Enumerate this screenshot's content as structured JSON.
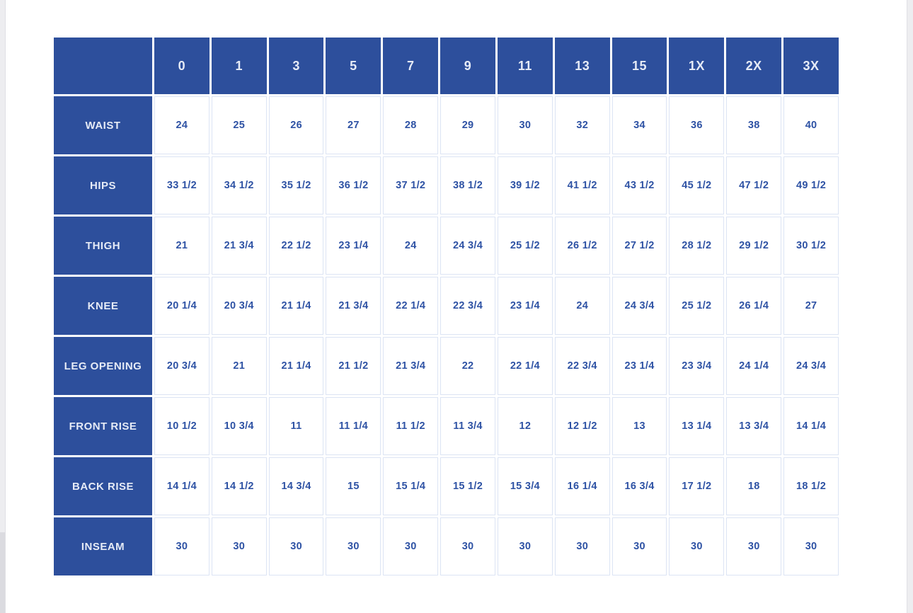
{
  "colors": {
    "header_bg": "#2d4f9c",
    "header_text": "#e6ebf6",
    "cell_text": "#2e52a4",
    "cell_border": "#dce4f4"
  },
  "chart_data": {
    "type": "table",
    "title": "",
    "corner_label": "",
    "columns": [
      "0",
      "1",
      "3",
      "5",
      "7",
      "9",
      "11",
      "13",
      "15",
      "1X",
      "2X",
      "3X"
    ],
    "rows": [
      {
        "label": "WAIST",
        "values": [
          "24",
          "25",
          "26",
          "27",
          "28",
          "29",
          "30",
          "32",
          "34",
          "36",
          "38",
          "40"
        ]
      },
      {
        "label": "HIPS",
        "values": [
          "33 1/2",
          "34 1/2",
          "35 1/2",
          "36 1/2",
          "37 1/2",
          "38 1/2",
          "39 1/2",
          "41 1/2",
          "43 1/2",
          "45 1/2",
          "47 1/2",
          "49 1/2"
        ]
      },
      {
        "label": "THIGH",
        "values": [
          "21",
          "21 3/4",
          "22 1/2",
          "23 1/4",
          "24",
          "24 3/4",
          "25 1/2",
          "26 1/2",
          "27 1/2",
          "28 1/2",
          "29 1/2",
          "30 1/2"
        ]
      },
      {
        "label": "KNEE",
        "values": [
          "20 1/4",
          "20 3/4",
          "21 1/4",
          "21 3/4",
          "22 1/4",
          "22 3/4",
          "23 1/4",
          "24",
          "24 3/4",
          "25 1/2",
          "26 1/4",
          "27"
        ]
      },
      {
        "label": "LEG OPENING",
        "values": [
          "20 3/4",
          "21",
          "21 1/4",
          "21 1/2",
          "21 3/4",
          "22",
          "22 1/4",
          "22 3/4",
          "23 1/4",
          "23 3/4",
          "24 1/4",
          "24 3/4"
        ]
      },
      {
        "label": "FRONT RISE",
        "values": [
          "10 1/2",
          "10 3/4",
          "11",
          "11 1/4",
          "11 1/2",
          "11 3/4",
          "12",
          "12 1/2",
          "13",
          "13 1/4",
          "13 3/4",
          "14 1/4"
        ]
      },
      {
        "label": "BACK RISE",
        "values": [
          "14 1/4",
          "14 1/2",
          "14 3/4",
          "15",
          "15 1/4",
          "15 1/2",
          "15 3/4",
          "16 1/4",
          "16 3/4",
          "17 1/2",
          "18",
          "18 1/2"
        ]
      },
      {
        "label": "INSEAM",
        "values": [
          "30",
          "30",
          "30",
          "30",
          "30",
          "30",
          "30",
          "30",
          "30",
          "30",
          "30",
          "30"
        ]
      }
    ]
  }
}
